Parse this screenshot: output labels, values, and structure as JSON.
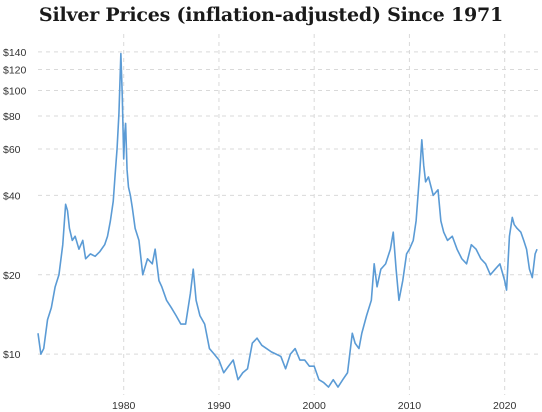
{
  "chart_data": {
    "type": "line",
    "title": "Silver Prices (inflation-adjusted) Since 1971",
    "xlabel": "",
    "ylabel": "",
    "y_scale": "log",
    "ylim": [
      7,
      150
    ],
    "xlim": [
      1971,
      2023.5
    ],
    "grid": true,
    "line_color": "#5b9bd5",
    "y_ticks": [
      {
        "value": 10,
        "label": "$10"
      },
      {
        "value": 20,
        "label": "$20"
      },
      {
        "value": 40,
        "label": "$40"
      },
      {
        "value": 60,
        "label": "$60"
      },
      {
        "value": 80,
        "label": "$80"
      },
      {
        "value": 100,
        "label": "$100"
      },
      {
        "value": 120,
        "label": "$120"
      },
      {
        "value": 140,
        "label": "$140"
      }
    ],
    "x_ticks": [
      {
        "value": 1980,
        "label": "1980"
      },
      {
        "value": 1990,
        "label": "1990"
      },
      {
        "value": 2000,
        "label": "2000"
      },
      {
        "value": 2010,
        "label": "2010"
      },
      {
        "value": 2020,
        "label": "2020"
      }
    ],
    "series": [
      {
        "x": [
          1971.0,
          1971.3,
          1971.6,
          1972.0,
          1972.4,
          1972.8,
          1973.2,
          1973.6,
          1973.9,
          1974.1,
          1974.3,
          1974.6,
          1974.9,
          1975.3,
          1975.7,
          1976.0,
          1976.5,
          1977.0,
          1977.5,
          1978.0,
          1978.3,
          1978.6,
          1978.9,
          1979.1,
          1979.3,
          1979.5,
          1979.7,
          1979.85,
          1980.0,
          1980.1,
          1980.2,
          1980.35,
          1980.5,
          1980.7,
          1980.9,
          1981.2,
          1981.6,
          1982.0,
          1982.5,
          1983.0,
          1983.3,
          1983.7,
          1984.0,
          1984.5,
          1985.0,
          1985.5,
          1986.0,
          1986.5,
          1987.0,
          1987.3,
          1987.6,
          1988.0,
          1988.5,
          1989.0,
          1989.5,
          1990.0,
          1990.5,
          1991.0,
          1991.5,
          1992.0,
          1992.5,
          1993.0,
          1993.5,
          1994.0,
          1994.5,
          1995.0,
          1995.5,
          1996.0,
          1996.5,
          1997.0,
          1997.5,
          1998.0,
          1998.5,
          1999.0,
          1999.5,
          2000.0,
          2000.5,
          2001.0,
          2001.5,
          2002.0,
          2002.5,
          2003.0,
          2003.5,
          2004.0,
          2004.3,
          2004.7,
          2005.0,
          2005.5,
          2006.0,
          2006.3,
          2006.6,
          2007.0,
          2007.5,
          2008.0,
          2008.3,
          2008.6,
          2008.9,
          2009.3,
          2009.7,
          2010.0,
          2010.4,
          2010.7,
          2010.9,
          2011.1,
          2011.3,
          2011.5,
          2011.7,
          2012.0,
          2012.5,
          2013.0,
          2013.3,
          2013.6,
          2014.0,
          2014.5,
          2015.0,
          2015.5,
          2016.0,
          2016.5,
          2017.0,
          2017.5,
          2018.0,
          2018.5,
          2019.0,
          2019.5,
          2020.0,
          2020.2,
          2020.5,
          2020.8,
          2021.0,
          2021.3,
          2021.7,
          2022.0,
          2022.3,
          2022.6,
          2022.9,
          2023.2,
          2023.4
        ],
        "y": [
          12.0,
          10.0,
          10.5,
          13.5,
          15.0,
          18.0,
          20.0,
          26.0,
          37.0,
          35.0,
          30.0,
          27.0,
          28.0,
          25.0,
          27.0,
          23.0,
          24.0,
          23.5,
          24.5,
          26.0,
          28.0,
          32.0,
          38.0,
          48.0,
          60.0,
          82.0,
          138.0,
          95.0,
          55.0,
          68.0,
          75.0,
          50.0,
          43.0,
          40.0,
          36.0,
          30.0,
          27.0,
          20.0,
          23.0,
          22.0,
          25.0,
          19.0,
          18.0,
          16.0,
          15.0,
          14.0,
          13.0,
          13.0,
          17.0,
          21.0,
          16.0,
          14.0,
          13.0,
          10.5,
          10.0,
          9.5,
          8.5,
          9.0,
          9.5,
          8.0,
          8.5,
          8.8,
          11.0,
          11.5,
          10.8,
          10.5,
          10.2,
          10.0,
          9.8,
          8.8,
          10.0,
          10.5,
          9.5,
          9.5,
          9.0,
          9.0,
          8.0,
          7.8,
          7.5,
          8.0,
          7.5,
          8.0,
          8.5,
          12.0,
          11.0,
          10.5,
          12.0,
          14.0,
          16.0,
          22.0,
          18.0,
          21.0,
          22.0,
          25.0,
          29.0,
          21.0,
          16.0,
          19.0,
          24.0,
          25.0,
          27.0,
          32.0,
          40.0,
          50.0,
          65.0,
          52.0,
          45.0,
          47.0,
          40.0,
          42.0,
          32.0,
          29.0,
          27.0,
          28.0,
          25.0,
          23.0,
          22.0,
          26.0,
          25.0,
          23.0,
          22.0,
          20.0,
          21.0,
          22.0,
          19.0,
          17.5,
          28.0,
          33.0,
          31.0,
          30.0,
          29.0,
          27.0,
          25.0,
          21.0,
          19.5,
          24.0,
          25.0
        ]
      }
    ]
  }
}
